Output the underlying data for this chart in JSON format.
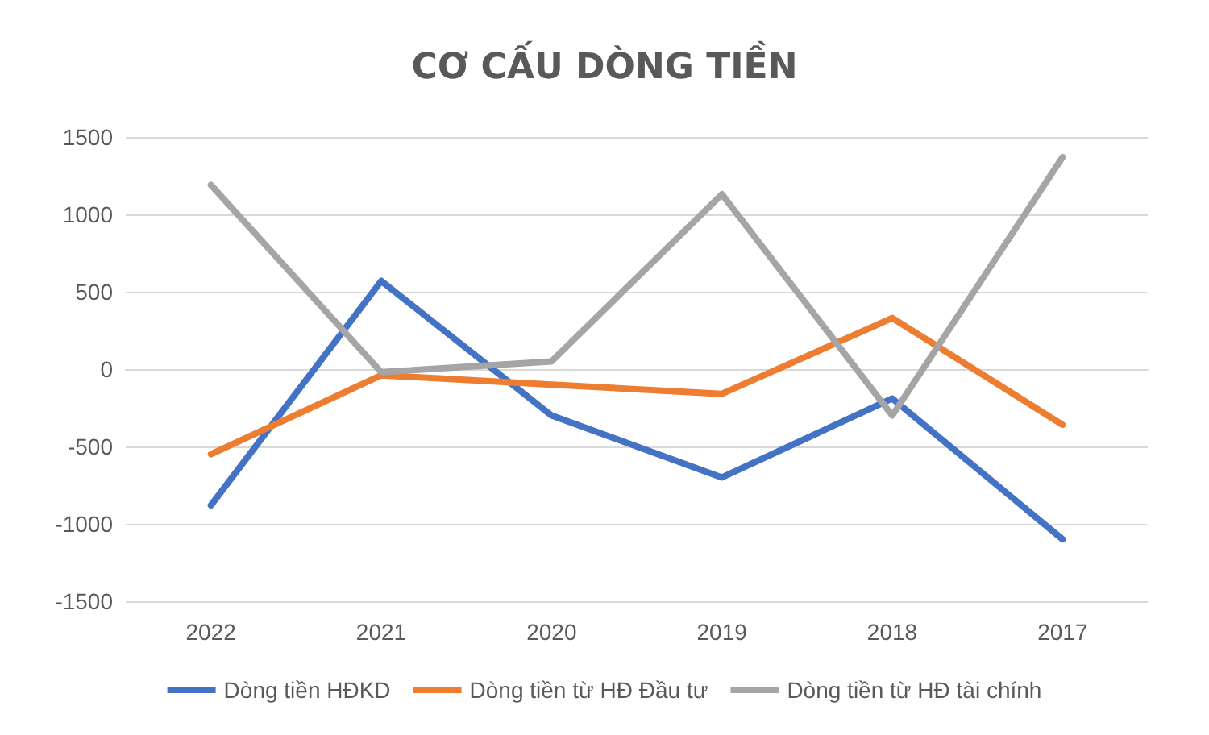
{
  "chart_data": {
    "type": "line",
    "title": "CƠ CẤU DÒNG TIỀN",
    "categories": [
      "2022",
      "2021",
      "2020",
      "2019",
      "2018",
      "2017"
    ],
    "series": [
      {
        "name": "Dòng tiền HĐKD",
        "color": "#4472c4",
        "values": [
          -880,
          570,
          -300,
          -700,
          -190,
          -1100
        ]
      },
      {
        "name": "Dòng tiền từ HĐ Đầu tư",
        "color": "#ed7d31",
        "values": [
          -550,
          -40,
          -100,
          -160,
          330,
          -360
        ]
      },
      {
        "name": "Dòng tiền từ HĐ tài chính",
        "color": "#a5a5a5",
        "values": [
          1190,
          -20,
          50,
          1130,
          -300,
          1370
        ]
      }
    ],
    "ylim": [
      -1500,
      1500
    ],
    "yticks": [
      -1500,
      -1000,
      -500,
      0,
      500,
      1000,
      1500
    ],
    "grid": "y",
    "legend": "bottom",
    "marker": "none",
    "line_style": "solid"
  }
}
